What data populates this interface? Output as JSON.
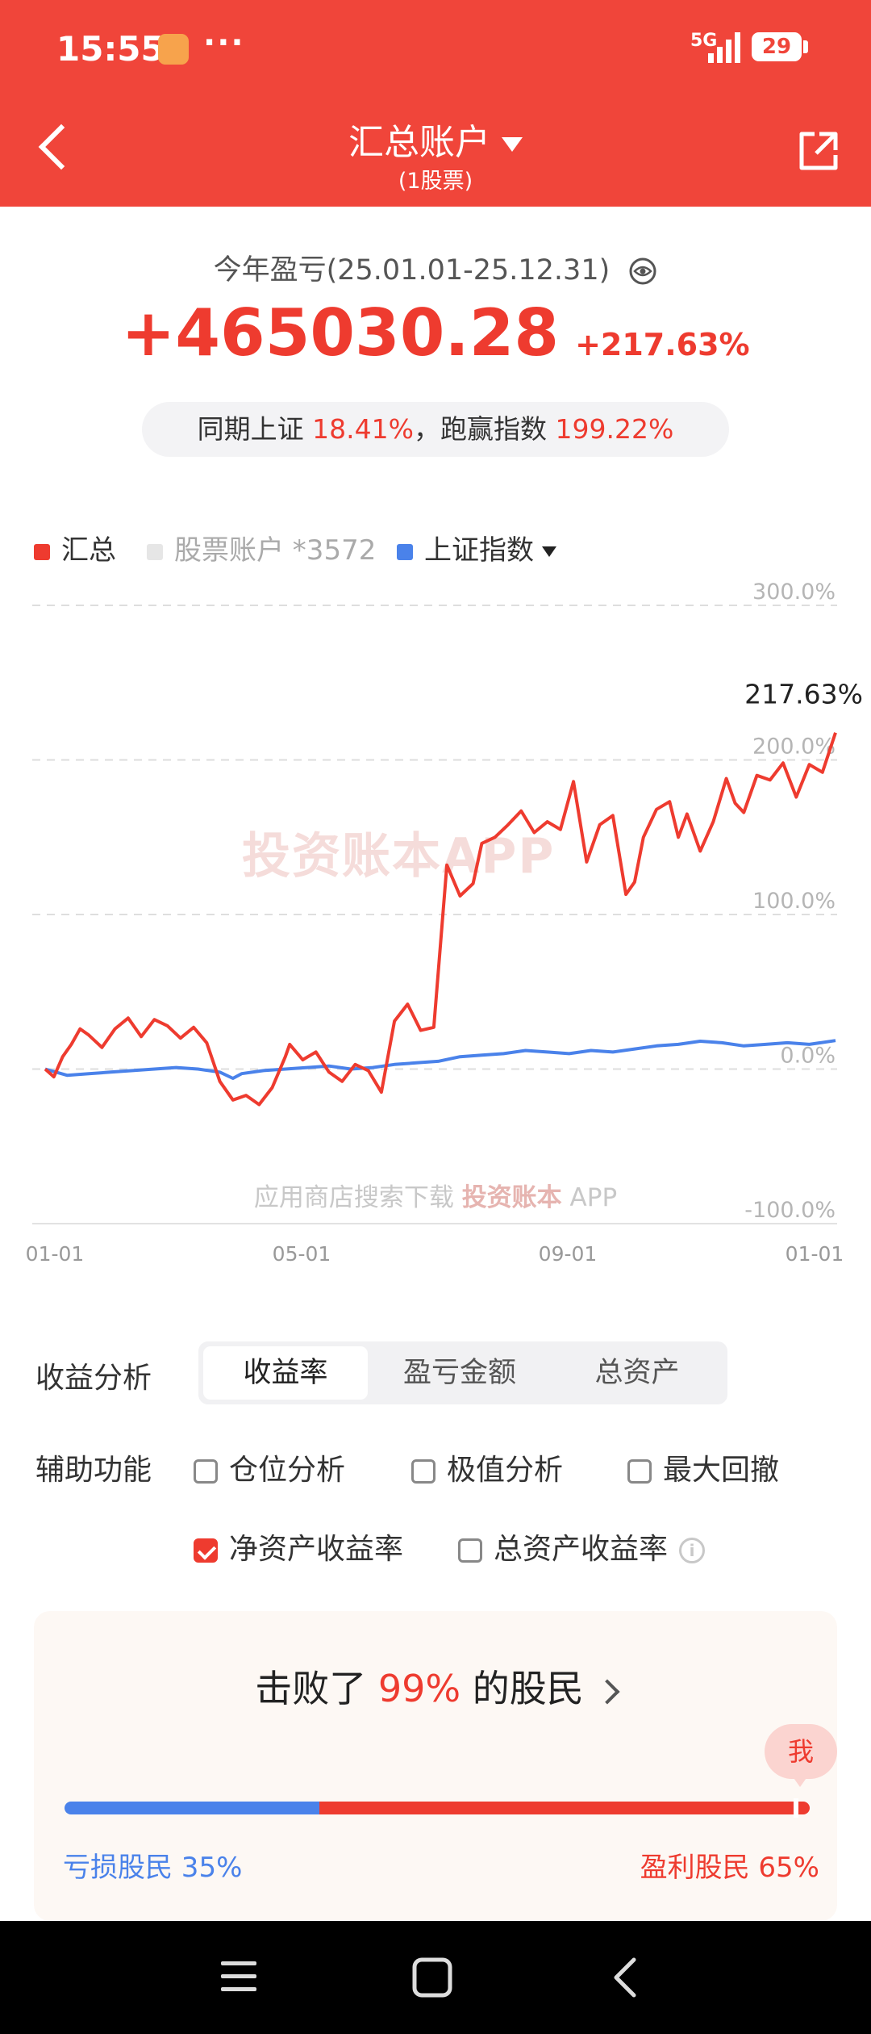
{
  "status_bar": {
    "time": "15:55",
    "network": "5G",
    "battery": "29"
  },
  "header": {
    "title": "汇总账户",
    "subtitle": "(1股票)"
  },
  "summary": {
    "period_label": "今年盈亏(25.01.01-25.12.31)",
    "profit": "+465030.28",
    "profit_pct": "+217.63%",
    "compare_prefix": "同期上证",
    "index_pct": "18.41%",
    "compare_mid": "，跑赢指数",
    "outperform_pct": "199.22%"
  },
  "legend": {
    "total": "汇总",
    "stock_account": "股票账户 *3572",
    "index": "上证指数"
  },
  "colors": {
    "accent": "#f0453a",
    "series_total": "#ee3b2f",
    "series_index": "#4a82ea",
    "legend_stock": "#e6e6e6"
  },
  "chart_data": {
    "type": "line",
    "y_ticks": [
      "300.0%",
      "200.0%",
      "100.0%",
      "0.0%",
      "-100.0%"
    ],
    "x_ticks": [
      "01-01",
      "05-01",
      "09-01",
      "01-01"
    ],
    "ylim": [
      -100,
      300
    ],
    "end_label": "217.63%",
    "series": [
      {
        "name": "汇总",
        "color": "#ee3b2f",
        "x": [
          0,
          4,
          8,
          12,
          16,
          20,
          26,
          32,
          38,
          44,
          50,
          56,
          62,
          68,
          74,
          80,
          86,
          92,
          98,
          104,
          110,
          112,
          118,
          124,
          130,
          136,
          142,
          148,
          154,
          160,
          166,
          172,
          178,
          184,
          190,
          196,
          200,
          206,
          212,
          218,
          224,
          230,
          236,
          242,
          248,
          254,
          260,
          266,
          270,
          274,
          280,
          286,
          290,
          294,
          300,
          306,
          312,
          316,
          320,
          326,
          332,
          338,
          344,
          350,
          356,
          362
        ],
        "y": [
          0,
          -5,
          8,
          16,
          26,
          22,
          14,
          26,
          33,
          21,
          32,
          28,
          20,
          27,
          17,
          -8,
          -20,
          -17,
          -23,
          -12,
          8,
          16,
          6,
          11,
          -2,
          -8,
          3,
          -1,
          -15,
          31,
          42,
          25,
          27,
          132,
          112,
          120,
          146,
          150,
          158,
          167,
          153,
          160,
          155,
          186,
          134,
          158,
          164,
          113,
          121,
          150,
          168,
          173,
          150,
          165,
          141,
          160,
          188,
          172,
          166,
          190,
          187,
          198,
          176,
          197,
          192,
          217.63
        ]
      },
      {
        "name": "上证指数",
        "color": "#4a82ea",
        "x": [
          0,
          10,
          20,
          30,
          40,
          50,
          60,
          70,
          80,
          86,
          90,
          100,
          110,
          120,
          130,
          140,
          150,
          160,
          170,
          180,
          190,
          200,
          210,
          220,
          230,
          240,
          250,
          260,
          270,
          280,
          290,
          300,
          310,
          320,
          330,
          340,
          350,
          362
        ],
        "y": [
          0,
          -4,
          -3,
          -2,
          -1,
          0,
          1,
          0,
          -2,
          -6,
          -3,
          -1,
          0,
          1,
          2,
          0,
          1,
          3,
          4,
          5,
          8,
          9,
          10,
          12,
          11,
          10,
          12,
          11,
          13,
          15,
          16,
          18,
          17,
          15,
          16,
          17,
          16,
          18.41
        ]
      }
    ]
  },
  "analysis": {
    "label": "收益分析",
    "tabs": [
      "收益率",
      "盈亏金额",
      "总资产"
    ],
    "active_tab": 0
  },
  "aux": {
    "label": "辅助功能",
    "options": [
      "仓位分析",
      "极值分析",
      "最大回撤",
      "净资产收益率",
      "总资产收益率"
    ],
    "checked": [
      false,
      false,
      false,
      true,
      false
    ]
  },
  "beat": {
    "prefix": "击败了",
    "pct": "99%",
    "suffix": "的股民",
    "me": "我",
    "loss_label": "亏损股民 35%",
    "gain_label": "盈利股民 65%",
    "loss_fraction": 0.35,
    "my_position": 0.99
  },
  "watermark": {
    "main": "投资账本APP",
    "hint": "应用商店搜索下载",
    "brand": "投资账本",
    "app": "APP"
  }
}
